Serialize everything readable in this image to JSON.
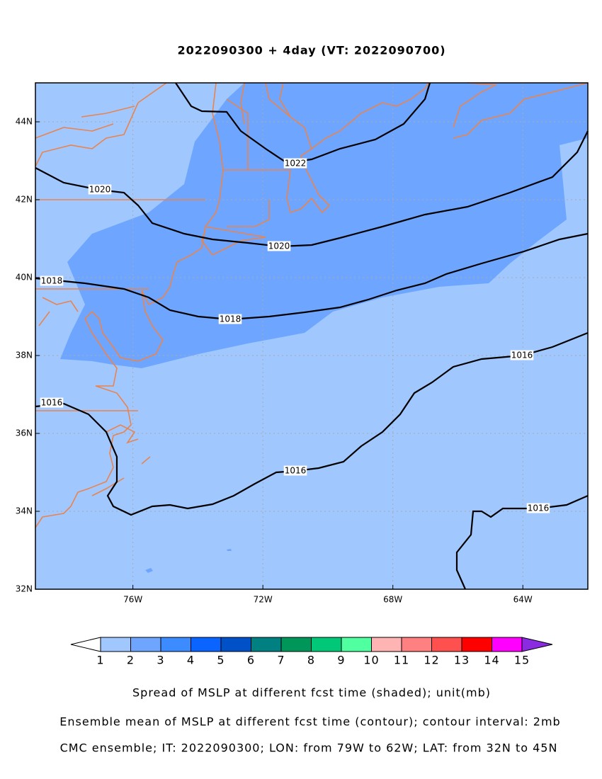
{
  "title": "2022090300 + 4day (VT: 2022090700)",
  "lon_range": [
    -79,
    -62
  ],
  "lat_range": [
    32,
    45
  ],
  "xticks": [
    {
      "value": -76,
      "label": "76W"
    },
    {
      "value": -72,
      "label": "72W"
    },
    {
      "value": -68,
      "label": "68W"
    },
    {
      "value": -64,
      "label": "64W"
    }
  ],
  "yticks": [
    {
      "value": 32,
      "label": "32N"
    },
    {
      "value": 34,
      "label": "34N"
    },
    {
      "value": 36,
      "label": "36N"
    },
    {
      "value": 38,
      "label": "38N"
    },
    {
      "value": 40,
      "label": "40N"
    },
    {
      "value": 42,
      "label": "42N"
    },
    {
      "value": 44,
      "label": "44N"
    }
  ],
  "contours": [
    1022,
    1020,
    1018,
    1016
  ],
  "colorbar": {
    "levels": [
      1,
      2,
      3,
      4,
      5,
      6,
      7,
      8,
      9,
      10,
      11,
      12,
      13,
      14,
      15
    ],
    "colors": [
      "#ffffff",
      "#a0c8ff",
      "#6ea6ff",
      "#3c8cff",
      "#0a64ff",
      "#0050c8",
      "#008080",
      "#00965a",
      "#00c878",
      "#50ffa0",
      "#ffb4b4",
      "#ff8080",
      "#ff5050",
      "#ff0000",
      "#ff00ff",
      "#8a2be2"
    ]
  },
  "captions": [
    "Spread of MSLP at different fcst time (shaded); unit(mb)",
    "Ensemble mean of MSLP at different fcst time (contour); contour interval: 2mb",
    "CMC ensemble; IT: 2022090300; LON: from 79W to 62W; LAT: from 32N to 45N"
  ]
}
